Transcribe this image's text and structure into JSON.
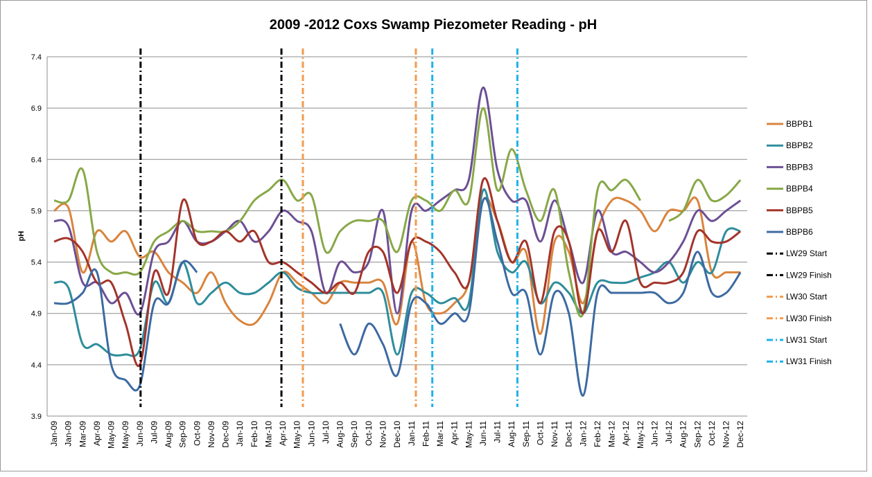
{
  "chart_data": {
    "type": "line",
    "title": "2009 -2012  Coxs Swamp Piezometer Reading - pH",
    "y_label": "pH",
    "categories": [
      "Jan-09",
      "Jan-09",
      "Mar-09",
      "Apr-09",
      "May-09",
      "May-09",
      "Jun-09",
      "Jul-09",
      "Aug-09",
      "Sep-09",
      "Oct-09",
      "Nov-09",
      "Dec-09",
      "Jan-10",
      "Feb-10",
      "Mar-10",
      "Apr-10",
      "May-10",
      "Jun-10",
      "Jul-10",
      "Aug-10",
      "Sep-10",
      "Oct-10",
      "Nov-10",
      "Dec-10",
      "Jan-11",
      "Feb-11",
      "Mar-11",
      "Apr-11",
      "May-11",
      "Jun-11",
      "Jul-11",
      "Aug-11",
      "Sep-11",
      "Oct-11",
      "Nov-11",
      "Dec-11",
      "Jan-12",
      "Feb-12",
      "Mar-12",
      "Apr-12",
      "May-12",
      "Jun-12",
      "Jul-12",
      "Aug-12",
      "Sep-12",
      "Oct-12",
      "Nov-12",
      "Dec-12"
    ],
    "ylim": [
      3.9,
      7.4
    ],
    "yticks": [
      {
        "value": 3.9,
        "label": "3.9"
      },
      {
        "value": 4.4,
        "label": "4.4"
      },
      {
        "value": 4.9,
        "label": "4.9"
      },
      {
        "value": 5.4,
        "label": "5.4"
      },
      {
        "value": 5.9,
        "label": "5.9"
      },
      {
        "value": 6.4,
        "label": "6.4"
      },
      {
        "value": 6.9,
        "label": "6.9"
      },
      {
        "value": 7.4,
        "label": "7.4"
      }
    ],
    "grid": true,
    "legend": "right",
    "smooth": true,
    "series": [
      {
        "name": "BBPB1",
        "color": "#d9843d",
        "values": [
          5.9,
          5.93,
          5.3,
          5.7,
          5.6,
          5.7,
          5.45,
          5.5,
          5.3,
          5.2,
          5.1,
          5.3,
          5.0,
          4.83,
          4.8,
          5.0,
          5.3,
          5.2,
          5.1,
          5.0,
          5.2,
          5.2,
          5.2,
          5.2,
          4.8,
          5.6,
          5.0,
          4.9,
          5.0,
          5.2,
          6.0,
          5.8,
          5.4,
          5.5,
          4.7,
          5.6,
          5.5,
          5.0,
          5.7,
          6.0,
          6.0,
          5.9,
          5.7,
          5.9,
          5.9,
          6.0,
          5.3,
          5.3,
          5.3
        ]
      },
      {
        "name": "BBPB2",
        "color": "#2e8d9b",
        "values": [
          5.2,
          5.15,
          4.6,
          4.6,
          4.5,
          4.5,
          4.55,
          5.2,
          5.0,
          5.4,
          5.0,
          5.1,
          5.2,
          5.1,
          5.1,
          5.2,
          5.3,
          5.15,
          5.1,
          5.1,
          5.1,
          5.1,
          5.1,
          5.1,
          4.5,
          5.1,
          5.1,
          5.0,
          5.05,
          5.0,
          6.1,
          5.5,
          5.3,
          5.4,
          5.0,
          5.2,
          5.1,
          4.9,
          5.2,
          5.2,
          5.2,
          5.25,
          5.3,
          5.4,
          5.2,
          5.4,
          5.3,
          5.7,
          5.7
        ]
      },
      {
        "name": "BBPB3",
        "color": "#6c4f94",
        "values": [
          5.8,
          5.75,
          5.2,
          5.2,
          5.0,
          5.1,
          4.9,
          5.5,
          5.6,
          5.8,
          5.6,
          5.6,
          5.7,
          5.8,
          5.6,
          5.7,
          5.9,
          5.8,
          5.7,
          5.1,
          5.4,
          5.3,
          5.4,
          5.9,
          4.9,
          5.9,
          5.9,
          6.0,
          6.1,
          6.2,
          7.1,
          6.3,
          6.0,
          6.0,
          5.6,
          6.0,
          5.6,
          5.2,
          5.9,
          5.5,
          5.5,
          5.4,
          5.3,
          5.4,
          5.6,
          5.9,
          5.8,
          5.9,
          6.0
        ]
      },
      {
        "name": "BBPB4",
        "color": "#87a847",
        "values": [
          6.0,
          6.0,
          6.3,
          5.5,
          5.3,
          5.3,
          5.3,
          5.6,
          5.7,
          5.8,
          5.7,
          5.7,
          5.7,
          5.8,
          6.0,
          6.1,
          6.2,
          6.0,
          6.05,
          5.5,
          5.7,
          5.8,
          5.8,
          5.8,
          5.5,
          6.0,
          6.0,
          5.9,
          6.1,
          6.0,
          6.9,
          6.1,
          6.5,
          6.1,
          5.8,
          6.1,
          5.3,
          4.9,
          6.1,
          6.1,
          6.2,
          6.0,
          null,
          5.8,
          5.9,
          6.2,
          6.0,
          6.05,
          6.2
        ]
      },
      {
        "name": "BBPB5",
        "color": "#a3342a",
        "values": [
          5.6,
          5.63,
          5.5,
          5.2,
          5.2,
          4.8,
          4.4,
          5.3,
          5.1,
          6.0,
          5.6,
          5.6,
          5.7,
          5.6,
          5.7,
          5.4,
          5.4,
          5.3,
          5.2,
          5.1,
          5.2,
          5.1,
          5.5,
          5.5,
          5.1,
          5.6,
          5.6,
          5.5,
          5.3,
          5.2,
          6.2,
          5.8,
          5.4,
          5.6,
          5.0,
          5.7,
          5.6,
          4.9,
          5.7,
          5.5,
          5.8,
          5.2,
          5.2,
          5.2,
          5.3,
          5.7,
          5.6,
          5.6,
          5.7
        ]
      },
      {
        "name": "BBPB6",
        "color": "#3c6aa1",
        "values": [
          5.0,
          5.0,
          5.1,
          5.3,
          4.4,
          4.25,
          4.2,
          5.0,
          5.0,
          5.4,
          5.3,
          null,
          null,
          null,
          null,
          null,
          null,
          null,
          null,
          null,
          4.8,
          4.5,
          4.8,
          4.6,
          4.3,
          5.0,
          5.0,
          4.8,
          4.9,
          4.9,
          6.0,
          5.6,
          5.1,
          5.1,
          4.5,
          5.1,
          4.9,
          4.1,
          5.1,
          5.1,
          5.1,
          5.1,
          5.1,
          5.0,
          5.1,
          5.5,
          5.1,
          5.1,
          5.3
        ]
      }
    ],
    "events": [
      {
        "name": "LW29 Start",
        "color": "#000000",
        "x": 6.05
      },
      {
        "name": "LW29 Finish",
        "color": "#000000",
        "x": 15.9
      },
      {
        "name": "LW30 Start",
        "color": "#f39a4d",
        "x": 17.4
      },
      {
        "name": "LW30 Finish",
        "color": "#f39a4d",
        "x": 25.3
      },
      {
        "name": "LW31 Start",
        "color": "#1eb2e8",
        "x": 26.45
      },
      {
        "name": "LW31 Finish",
        "color": "#1eb2e8",
        "x": 32.4
      }
    ]
  }
}
